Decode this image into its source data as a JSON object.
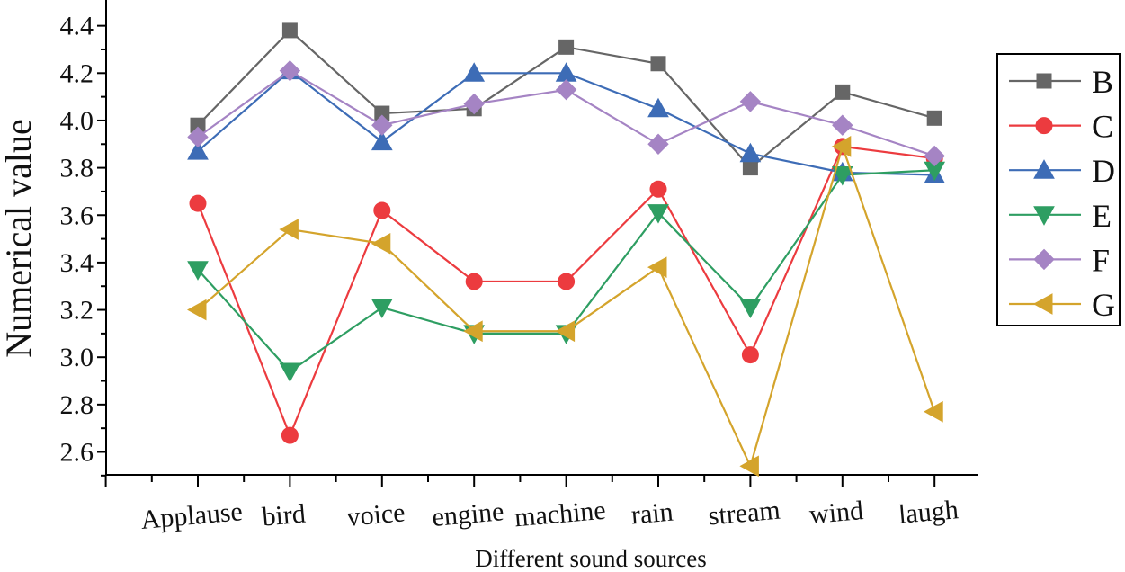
{
  "chart_data": {
    "type": "line",
    "title": "",
    "xlabel": "Different sound sources",
    "ylabel": "Numerical value",
    "categories": [
      "Applause",
      "bird",
      "voice",
      "engine",
      "machine",
      "rain",
      "stream",
      "wind",
      "laugh"
    ],
    "ylim": [
      2.5,
      4.5
    ],
    "yticks": [
      "2.6",
      "2.8",
      "3.0",
      "3.2",
      "3.4",
      "3.6",
      "3.8",
      "4.0",
      "4.2",
      "4.4"
    ],
    "grid": false,
    "legend_position": "right",
    "series": [
      {
        "name": "B",
        "color": "#666666",
        "marker": "square",
        "values": [
          3.98,
          4.38,
          4.03,
          4.05,
          4.31,
          4.24,
          3.8,
          4.12,
          4.01
        ]
      },
      {
        "name": "C",
        "color": "#ec3b3f",
        "marker": "circle",
        "values": [
          3.65,
          2.67,
          3.62,
          3.32,
          3.32,
          3.71,
          3.01,
          3.89,
          3.84
        ]
      },
      {
        "name": "D",
        "color": "#3d6cb6",
        "marker": "triangle-up",
        "values": [
          3.87,
          4.21,
          3.91,
          4.2,
          4.2,
          4.05,
          3.86,
          3.78,
          3.77
        ]
      },
      {
        "name": "E",
        "color": "#2e9e62",
        "marker": "triangle-down",
        "values": [
          3.37,
          2.94,
          3.21,
          3.1,
          3.1,
          3.61,
          3.21,
          3.77,
          3.79
        ]
      },
      {
        "name": "F",
        "color": "#a584c4",
        "marker": "diamond",
        "values": [
          3.93,
          4.21,
          3.98,
          4.07,
          4.13,
          3.9,
          4.08,
          3.98,
          3.85
        ]
      },
      {
        "name": "G",
        "color": "#d4a42c",
        "marker": "triangle-left",
        "values": [
          3.2,
          3.54,
          3.48,
          3.11,
          3.11,
          3.38,
          2.54,
          3.89,
          2.77
        ]
      }
    ]
  }
}
